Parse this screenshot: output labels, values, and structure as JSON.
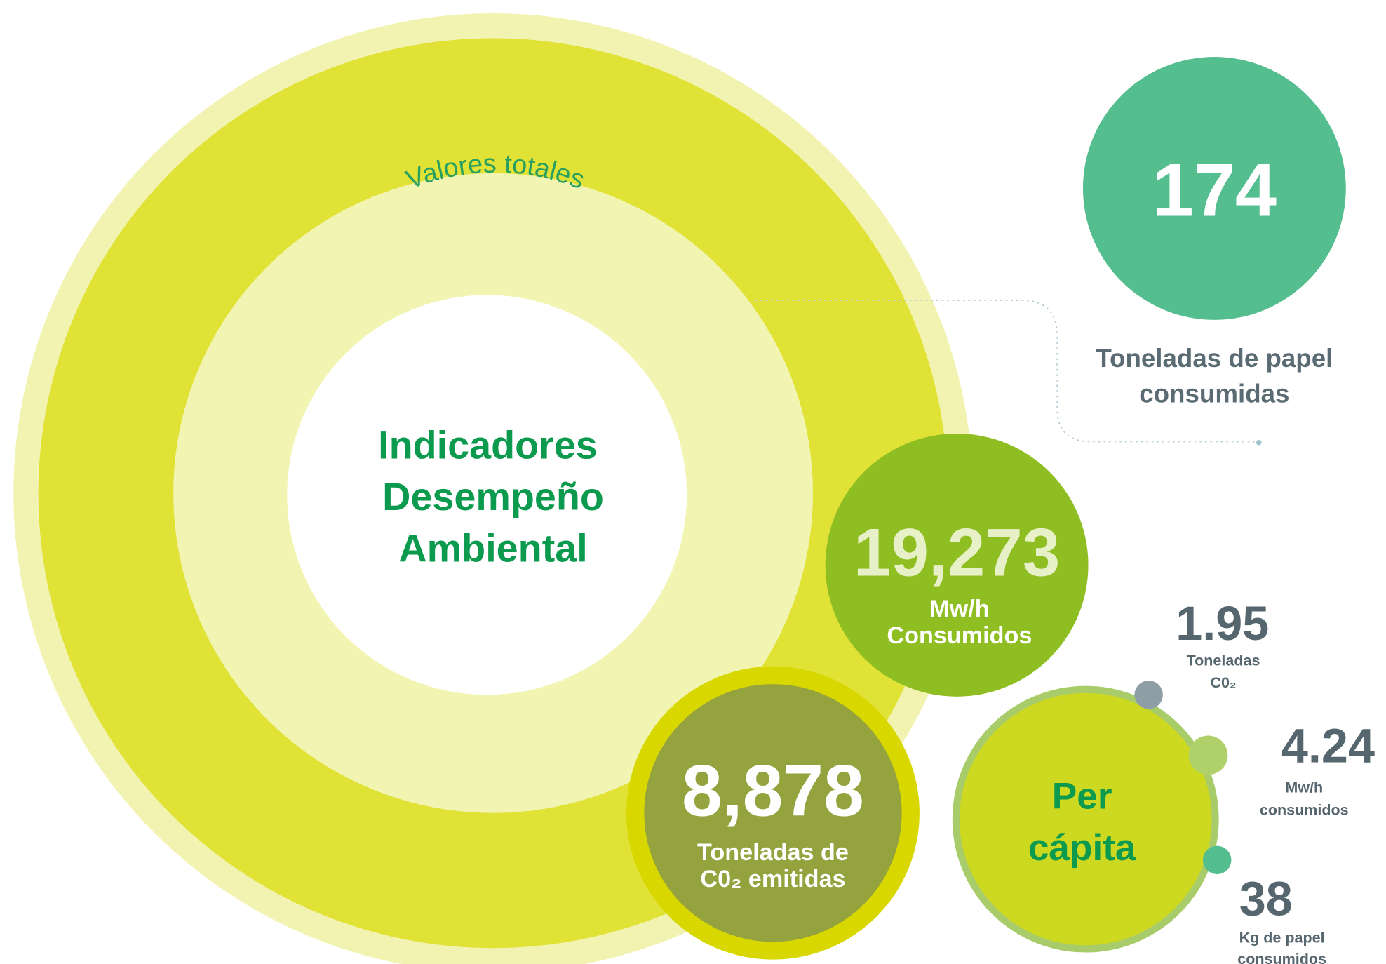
{
  "title": [
    "Indicadores",
    "Desempeño",
    "Ambiental"
  ],
  "arc_label": "Valores totales",
  "totals": [
    {
      "value": "174",
      "label": [
        "Toneladas de papel",
        "consumidas"
      ]
    },
    {
      "value": "19,273",
      "label": [
        "Mw/h",
        "Consumidos"
      ]
    },
    {
      "value": "8,878",
      "label": [
        "Toneladas de",
        "C0₂ emitidas"
      ]
    }
  ],
  "per_capita": {
    "title": [
      "Per",
      "cápita"
    ],
    "items": [
      {
        "value": "1.95",
        "label": [
          "Toneladas",
          "C0₂"
        ]
      },
      {
        "value": "4.24",
        "label": [
          "Mw/h",
          "consumidos"
        ]
      },
      {
        "value": "38",
        "label": [
          "Kg de papel",
          "consumidos"
        ]
      }
    ]
  }
}
